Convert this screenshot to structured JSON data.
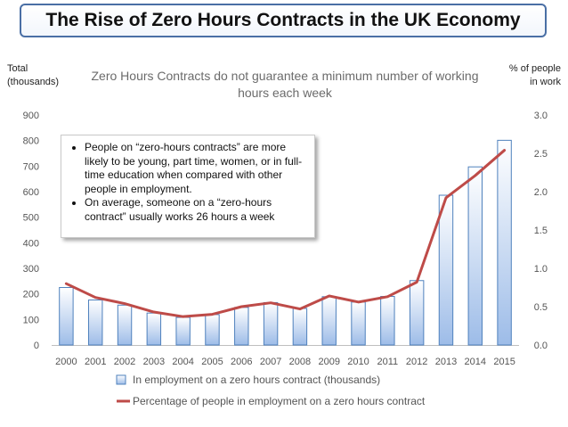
{
  "header": {
    "title": "The Rise of Zero Hours Contracts in the UK Economy"
  },
  "left_axis_note": [
    "Total",
    "(thousands)"
  ],
  "right_axis_note": [
    "% of people",
    "in work"
  ],
  "callout": {
    "bullets": [
      "People on “zero-hours contracts” are more likely to be young, part time, women, or in full-time education when compared with other people in employment.",
      "On average, someone on a “zero-hours contract” usually works 26 hours a week"
    ]
  },
  "chart_data": {
    "type": "bar",
    "title": "Zero Hours Contracts do not guarantee a minimum number of working hours each week",
    "categories": [
      "2000",
      "2001",
      "2002",
      "2003",
      "2004",
      "2005",
      "2006",
      "2007",
      "2008",
      "2009",
      "2010",
      "2011",
      "2012",
      "2013",
      "2014",
      "2015"
    ],
    "series": [
      {
        "name": "In employment on a zero hours contract (thousands)",
        "type": "bar",
        "axis": "left",
        "values": [
          225,
          176,
          156,
          125,
          108,
          119,
          147,
          166,
          143,
          189,
          168,
          190,
          252,
          586,
          697,
          801
        ]
      },
      {
        "name": "Percentage of people in employment on a zero hours contract",
        "type": "line",
        "axis": "right",
        "values": [
          0.8,
          0.62,
          0.54,
          0.43,
          0.37,
          0.4,
          0.5,
          0.55,
          0.47,
          0.64,
          0.56,
          0.63,
          0.82,
          1.92,
          2.21,
          2.54
        ]
      }
    ],
    "ylim": [
      0,
      900
    ],
    "yticks": [
      "0",
      "100",
      "200",
      "300",
      "400",
      "500",
      "600",
      "700",
      "800",
      "900"
    ],
    "y2lim": [
      0,
      3.0
    ],
    "y2ticks": [
      "0.0",
      "0.5",
      "1.0",
      "1.5",
      "2.0",
      "2.5",
      "3.0"
    ],
    "grid": false,
    "legend_position": "bottom",
    "colors": {
      "bar_fill_top": "#ffffff",
      "bar_fill_bottom": "#9dbce8",
      "bar_stroke": "#4f81bd",
      "line": "#be4b48"
    }
  }
}
